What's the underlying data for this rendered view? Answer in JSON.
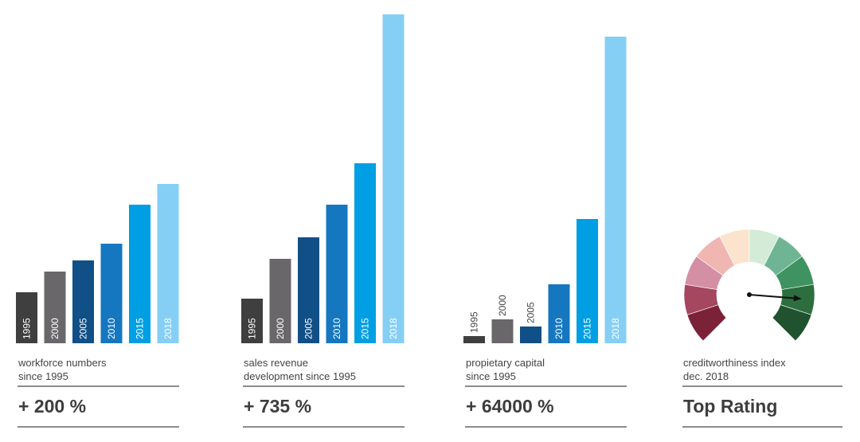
{
  "chart_data": [
    {
      "type": "bar",
      "title": "",
      "categories": [
        "1995",
        "2000",
        "2005",
        "2010",
        "2015",
        "2018"
      ],
      "values": [
        64,
        90,
        104,
        125,
        174,
        200
      ],
      "caption": [
        "workforce numbers",
        "since 1995"
      ],
      "headline": "+ 200 %",
      "colors": [
        "#3f3f3f",
        "#69676a",
        "#114f87",
        "#1577bf",
        "#009fe3",
        "#85cff5"
      ],
      "label_inside": [
        true,
        true,
        true,
        true,
        true,
        true
      ]
    },
    {
      "type": "bar",
      "title": "",
      "categories": [
        "1995",
        "2000",
        "2005",
        "2010",
        "2015",
        "2018"
      ],
      "values": [
        56,
        106,
        133,
        174,
        226,
        413
      ],
      "caption": [
        "sales revenue",
        "development since 1995"
      ],
      "headline": "+ 735 %",
      "colors": [
        "#3f3f3f",
        "#69676a",
        "#114f87",
        "#1577bf",
        "#009fe3",
        "#85cff5"
      ],
      "label_inside": [
        true,
        true,
        true,
        true,
        true,
        true
      ]
    },
    {
      "type": "bar",
      "title": "",
      "categories": [
        "1995",
        "2000",
        "2005",
        "2010",
        "2015",
        "2018"
      ],
      "values": [
        9,
        30,
        21,
        74,
        156,
        385
      ],
      "caption": [
        "propietary capital",
        "since 1995"
      ],
      "headline": "+ 64000 %",
      "colors": [
        "#3f3f3f",
        "#69676a",
        "#114f87",
        "#1577bf",
        "#009fe3",
        "#85cff5"
      ],
      "label_inside": [
        false,
        false,
        false,
        true,
        true,
        true
      ]
    }
  ],
  "gauge": {
    "caption": [
      "creditworthiness index",
      "dec. 2018"
    ],
    "headline": "Top Rating",
    "segment_colors": [
      "#7b2238",
      "#a5475e",
      "#d48fa5",
      "#f0b6b2",
      "#fce3cd",
      "#d3ecd7",
      "#6fb593",
      "#3f9360",
      "#2d6e3e",
      "#21522f"
    ],
    "needle_segment": 8
  }
}
